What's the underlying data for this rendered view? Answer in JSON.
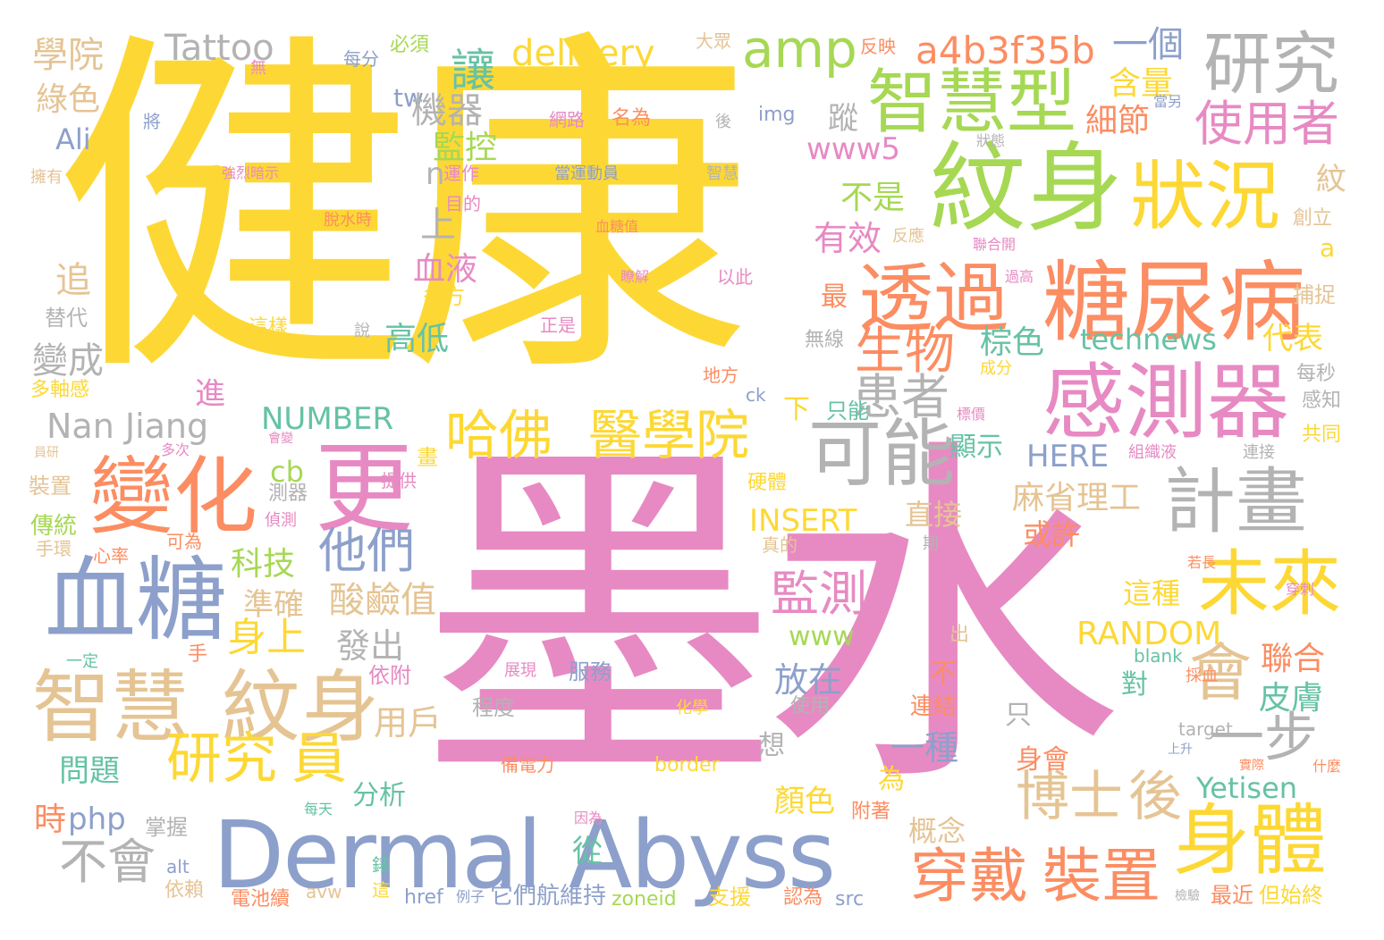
{
  "colors": {
    "yellow": "#fdd835",
    "pink": "#e78ac3",
    "blue": "#8da0cb",
    "green": "#a6d854",
    "orange": "#fc8d62",
    "teal": "#66c2a5",
    "tan": "#e5c494",
    "gray": "#b3b3b3"
  },
  "words": [
    {
      "text": "健康",
      "color": "yellow"
    },
    {
      "text": "墨水",
      "color": "pink"
    },
    {
      "text": "Dermal Abyss",
      "color": "blue"
    },
    {
      "text": "紋身",
      "color": "green"
    },
    {
      "text": "感測器",
      "color": "pink"
    },
    {
      "text": "糖尿病",
      "color": "orange"
    },
    {
      "text": "狀況",
      "color": "yellow"
    },
    {
      "text": "智慧型",
      "color": "green"
    },
    {
      "text": "研究",
      "color": "gray"
    },
    {
      "text": "透過",
      "color": "orange"
    },
    {
      "text": "變化",
      "color": "orange"
    },
    {
      "text": "更",
      "color": "pink"
    },
    {
      "text": "血糖",
      "color": "blue"
    },
    {
      "text": "智慧",
      "color": "tan"
    },
    {
      "text": "紋身",
      "color": "tan"
    },
    {
      "text": "可能",
      "color": "gray"
    },
    {
      "text": "計畫",
      "color": "gray"
    },
    {
      "text": "未來",
      "color": "yellow"
    },
    {
      "text": "身體",
      "color": "yellow"
    },
    {
      "text": "哈佛",
      "color": "yellow"
    },
    {
      "text": "醫學院",
      "color": "yellow"
    },
    {
      "text": "研究",
      "color": "yellow"
    },
    {
      "text": "員",
      "color": "yellow"
    },
    {
      "text": "會",
      "color": "tan"
    },
    {
      "text": "一步",
      "color": "gray"
    },
    {
      "text": "穿戴",
      "color": "orange"
    },
    {
      "text": "裝置",
      "color": "orange"
    },
    {
      "text": "博士",
      "color": "tan"
    },
    {
      "text": "後",
      "color": "tan"
    },
    {
      "text": "amp",
      "color": "green"
    },
    {
      "text": "a4b3f35b",
      "color": "orange"
    },
    {
      "text": "Tattoo",
      "color": "gray"
    },
    {
      "text": "delivery",
      "color": "yellow"
    },
    {
      "text": "讓",
      "color": "teal"
    },
    {
      "text": "使用者",
      "color": "pink"
    },
    {
      "text": "患者",
      "color": "gray"
    },
    {
      "text": "生物",
      "color": "orange"
    },
    {
      "text": "他們",
      "color": "blue"
    },
    {
      "text": "監測",
      "color": "pink"
    },
    {
      "text": "不會",
      "color": "gray"
    },
    {
      "text": "Nan Jiang",
      "color": "gray"
    },
    {
      "text": "NUMBER",
      "color": "teal"
    },
    {
      "text": "INSERT",
      "color": "yellow"
    },
    {
      "text": "RANDOM",
      "color": "yellow"
    },
    {
      "text": "technews",
      "color": "teal"
    },
    {
      "text": "www5",
      "color": "pink"
    },
    {
      "text": "HERE",
      "color": "blue"
    },
    {
      "text": "Yetisen",
      "color": "teal"
    },
    {
      "text": "www",
      "color": "green"
    },
    {
      "text": "php",
      "color": "blue"
    },
    {
      "text": "cb",
      "color": "green"
    },
    {
      "text": "Ali",
      "color": "blue"
    },
    {
      "text": "tw",
      "color": "blue"
    },
    {
      "text": "img",
      "color": "blue"
    },
    {
      "text": "border",
      "color": "yellow"
    },
    {
      "text": "target",
      "color": "gray"
    },
    {
      "text": "blank",
      "color": "teal"
    },
    {
      "text": "zoneid",
      "color": "green"
    },
    {
      "text": "href",
      "color": "blue"
    },
    {
      "text": "src",
      "color": "blue"
    },
    {
      "text": "avw",
      "color": "tan"
    },
    {
      "text": "alt",
      "color": "blue"
    },
    {
      "text": "ck",
      "color": "blue"
    },
    {
      "text": "a",
      "color": "yellow"
    },
    {
      "text": "n",
      "color": "gray"
    },
    {
      "text": "學院",
      "color": "tan"
    },
    {
      "text": "綠色",
      "color": "tan"
    },
    {
      "text": "機器",
      "color": "gray"
    },
    {
      "text": "監控",
      "color": "green"
    },
    {
      "text": "一個",
      "color": "blue"
    },
    {
      "text": "含量",
      "color": "yellow"
    },
    {
      "text": "細節",
      "color": "orange"
    },
    {
      "text": "不是",
      "color": "green"
    },
    {
      "text": "有效",
      "color": "pink"
    },
    {
      "text": "血液",
      "color": "pink"
    },
    {
      "text": "高低",
      "color": "teal"
    },
    {
      "text": "棕色",
      "color": "teal"
    },
    {
      "text": "代表",
      "color": "yellow"
    },
    {
      "text": "變成",
      "color": "gray"
    },
    {
      "text": "科技",
      "color": "green"
    },
    {
      "text": "準確",
      "color": "tan"
    },
    {
      "text": "酸鹼值",
      "color": "tan"
    },
    {
      "text": "身上",
      "color": "yellow"
    },
    {
      "text": "發出",
      "color": "gray"
    },
    {
      "text": "放在",
      "color": "blue"
    },
    {
      "text": "麻省理工",
      "color": "tan"
    },
    {
      "text": "直接",
      "color": "tan"
    },
    {
      "text": "或許",
      "color": "orange"
    },
    {
      "text": "這種",
      "color": "yellow"
    },
    {
      "text": "聯合",
      "color": "orange"
    },
    {
      "text": "皮膚",
      "color": "teal"
    },
    {
      "text": "用戶",
      "color": "tan"
    },
    {
      "text": "一種",
      "color": "blue"
    },
    {
      "text": "問題",
      "color": "teal"
    },
    {
      "text": "分析",
      "color": "teal"
    },
    {
      "text": "顏色",
      "color": "yellow"
    },
    {
      "text": "概念",
      "color": "tan"
    },
    {
      "text": "身會",
      "color": "orange"
    },
    {
      "text": "時",
      "color": "orange"
    },
    {
      "text": "從",
      "color": "teal"
    },
    {
      "text": "掌握",
      "color": "gray"
    },
    {
      "text": "附著",
      "color": "orange"
    },
    {
      "text": "它們",
      "color": "blue"
    },
    {
      "text": "航維持",
      "color": "blue"
    },
    {
      "text": "支援",
      "color": "yellow"
    },
    {
      "text": "認為",
      "color": "orange"
    },
    {
      "text": "最近",
      "color": "orange"
    },
    {
      "text": "但始終",
      "color": "yellow"
    },
    {
      "text": "電池續",
      "color": "orange"
    },
    {
      "text": "依賴",
      "color": "tan"
    },
    {
      "text": "追",
      "color": "tan"
    },
    {
      "text": "替代",
      "color": "gray"
    },
    {
      "text": "多軸感",
      "color": "yellow"
    },
    {
      "text": "每分",
      "color": "blue"
    },
    {
      "text": "必須",
      "color": "green"
    },
    {
      "text": "大眾",
      "color": "tan"
    },
    {
      "text": "反映",
      "color": "orange"
    },
    {
      "text": "網路",
      "color": "pink"
    },
    {
      "text": "名為",
      "color": "orange"
    },
    {
      "text": "當另",
      "color": "blue"
    },
    {
      "text": "狀態",
      "color": "gray"
    },
    {
      "text": "運作",
      "color": "pink"
    },
    {
      "text": "當運動員",
      "color": "blue"
    },
    {
      "text": "智慧",
      "color": "gray"
    },
    {
      "text": "強烈暗示",
      "color": "pink"
    },
    {
      "text": "擁有",
      "color": "tan"
    },
    {
      "text": "將",
      "color": "blue"
    },
    {
      "text": "無",
      "color": "pink"
    },
    {
      "text": "目的",
      "color": "pink"
    },
    {
      "text": "脫水時",
      "color": "orange"
    },
    {
      "text": "血糖值",
      "color": "orange"
    },
    {
      "text": "反應",
      "color": "tan"
    },
    {
      "text": "聯合開",
      "color": "pink"
    },
    {
      "text": "紋",
      "color": "tan"
    },
    {
      "text": "創立",
      "color": "tan"
    },
    {
      "text": "捕捉",
      "color": "tan"
    },
    {
      "text": "以此",
      "color": "pink"
    },
    {
      "text": "過高",
      "color": "pink"
    },
    {
      "text": "瞭解",
      "color": "pink"
    },
    {
      "text": "多方",
      "color": "yellow"
    },
    {
      "text": "這樣",
      "color": "yellow"
    },
    {
      "text": "說",
      "color": "gray"
    },
    {
      "text": "正是",
      "color": "pink"
    },
    {
      "text": "無線",
      "color": "gray"
    },
    {
      "text": "成分",
      "color": "yellow"
    },
    {
      "text": "地方",
      "color": "orange"
    },
    {
      "text": "每秒",
      "color": "gray"
    },
    {
      "text": "感知",
      "color": "gray"
    },
    {
      "text": "最",
      "color": "orange"
    },
    {
      "text": "進",
      "color": "pink"
    },
    {
      "text": "下",
      "color": "yellow"
    },
    {
      "text": "只能",
      "color": "teal"
    },
    {
      "text": "顯示",
      "color": "teal"
    },
    {
      "text": "共同",
      "color": "yellow"
    },
    {
      "text": "連接",
      "color": "gray"
    },
    {
      "text": "組織液",
      "color": "pink"
    },
    {
      "text": "標價",
      "color": "pink"
    },
    {
      "text": "會變",
      "color": "pink"
    },
    {
      "text": "多次",
      "color": "pink"
    },
    {
      "text": "員研",
      "color": "tan"
    },
    {
      "text": "畫",
      "color": "yellow"
    },
    {
      "text": "提供",
      "color": "pink"
    },
    {
      "text": "裝置",
      "color": "tan"
    },
    {
      "text": "測器",
      "color": "gray"
    },
    {
      "text": "偵測",
      "color": "pink"
    },
    {
      "text": "硬體",
      "color": "yellow"
    },
    {
      "text": "傳統",
      "color": "green"
    },
    {
      "text": "手環",
      "color": "tan"
    },
    {
      "text": "心率",
      "color": "orange"
    },
    {
      "text": "可為",
      "color": "orange"
    },
    {
      "text": "真的",
      "color": "tan"
    },
    {
      "text": "期",
      "color": "gray"
    },
    {
      "text": "若長",
      "color": "orange"
    },
    {
      "text": "穿刺",
      "color": "pink"
    },
    {
      "text": "出",
      "color": "tan"
    },
    {
      "text": "手",
      "color": "orange"
    },
    {
      "text": "一定",
      "color": "teal"
    },
    {
      "text": "依附",
      "color": "pink"
    },
    {
      "text": "展現",
      "color": "pink"
    },
    {
      "text": "服務",
      "color": "blue"
    },
    {
      "text": "採血",
      "color": "orange"
    },
    {
      "text": "程度",
      "color": "gray"
    },
    {
      "text": "化學",
      "color": "yellow"
    },
    {
      "text": "使用",
      "color": "gray"
    },
    {
      "text": "連結",
      "color": "orange"
    },
    {
      "text": "只",
      "color": "gray"
    },
    {
      "text": "對",
      "color": "teal"
    },
    {
      "text": "不",
      "color": "orange"
    },
    {
      "text": "為",
      "color": "yellow"
    },
    {
      "text": "想",
      "color": "gray"
    },
    {
      "text": "上升",
      "color": "blue"
    },
    {
      "text": "什麼",
      "color": "orange"
    },
    {
      "text": "實際",
      "color": "orange"
    },
    {
      "text": "備電力",
      "color": "orange"
    },
    {
      "text": "每天",
      "color": "teal"
    },
    {
      "text": "因為",
      "color": "pink"
    },
    {
      "text": "錶",
      "color": "teal"
    },
    {
      "text": "這",
      "color": "yellow"
    },
    {
      "text": "例子",
      "color": "blue"
    },
    {
      "text": "檢驗",
      "color": "gray"
    },
    {
      "text": "上",
      "color": "gray"
    },
    {
      "text": "蹤",
      "color": "gray"
    },
    {
      "text": "後",
      "color": "gray"
    }
  ]
}
